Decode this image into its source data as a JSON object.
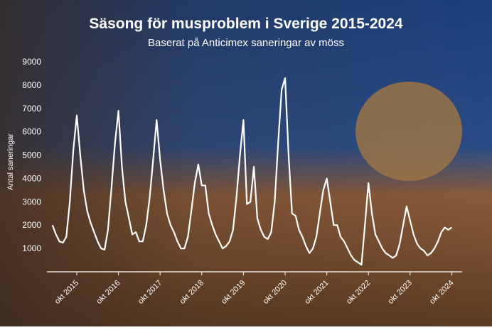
{
  "chart_data": {
    "type": "line",
    "title": "Säsong för musproblem i Sverige 2015-2024",
    "subtitle": "Baserat på Anticimex saneringar av möss",
    "y_label": "Antal saneringar",
    "categories": [
      null,
      null,
      null,
      null,
      null,
      null,
      null,
      "okt 2015",
      null,
      null,
      null,
      null,
      null,
      null,
      null,
      null,
      null,
      null,
      null,
      "okt 2016",
      null,
      null,
      null,
      null,
      null,
      null,
      null,
      null,
      null,
      null,
      null,
      "okt 2017",
      null,
      null,
      null,
      null,
      null,
      null,
      null,
      null,
      null,
      null,
      null,
      "okt 2018",
      null,
      null,
      null,
      null,
      null,
      null,
      null,
      null,
      null,
      null,
      null,
      "okt 2019",
      null,
      null,
      null,
      null,
      null,
      null,
      null,
      null,
      null,
      null,
      null,
      "okt 2020",
      null,
      null,
      null,
      null,
      null,
      null,
      null,
      null,
      null,
      null,
      null,
      "okt 2021",
      null,
      null,
      null,
      null,
      null,
      null,
      null,
      null,
      null,
      null,
      null,
      "okt 2022",
      null,
      null,
      null,
      null,
      null,
      null,
      null,
      null,
      null,
      null,
      null,
      "okt 2023",
      null,
      null,
      null,
      null,
      null,
      null,
      null,
      null,
      null,
      null,
      null,
      "okt 2024"
    ],
    "series": [
      {
        "name": "Antal saneringar",
        "color": "#ffffff",
        "values": [
          2000,
          1600,
          1300,
          1250,
          1500,
          3000,
          5200,
          6700,
          5000,
          3500,
          2600,
          2100,
          1700,
          1300,
          1000,
          950,
          1800,
          3600,
          5500,
          6900,
          4500,
          3000,
          2300,
          1600,
          1700,
          1300,
          1300,
          2000,
          3200,
          4800,
          6500,
          4800,
          3500,
          2500,
          2000,
          1700,
          1300,
          1000,
          1000,
          1500,
          2600,
          3800,
          4600,
          3700,
          3700,
          2500,
          2000,
          1600,
          1300,
          1000,
          1100,
          1300,
          1800,
          3200,
          5000,
          6500,
          2900,
          3000,
          4500,
          2300,
          1800,
          1500,
          1400,
          1700,
          3000,
          5500,
          7800,
          8300,
          5000,
          2500,
          2400,
          1800,
          1500,
          1100,
          800,
          1000,
          1500,
          2500,
          3500,
          4000,
          3000,
          2000,
          2000,
          1500,
          1300,
          1000,
          700,
          500,
          400,
          300,
          2000,
          3800,
          2500,
          1600,
          1300,
          1000,
          800,
          700,
          600,
          700,
          1200,
          2000,
          2800,
          2200,
          1600,
          1200,
          1000,
          900,
          700,
          800,
          1000,
          1300,
          1700,
          1900,
          1800,
          1900
        ]
      }
    ],
    "ylim": [
      0,
      9000
    ],
    "yticks": [
      1000,
      2000,
      3000,
      4000,
      5000,
      6000,
      7000,
      8000,
      9000
    ]
  }
}
